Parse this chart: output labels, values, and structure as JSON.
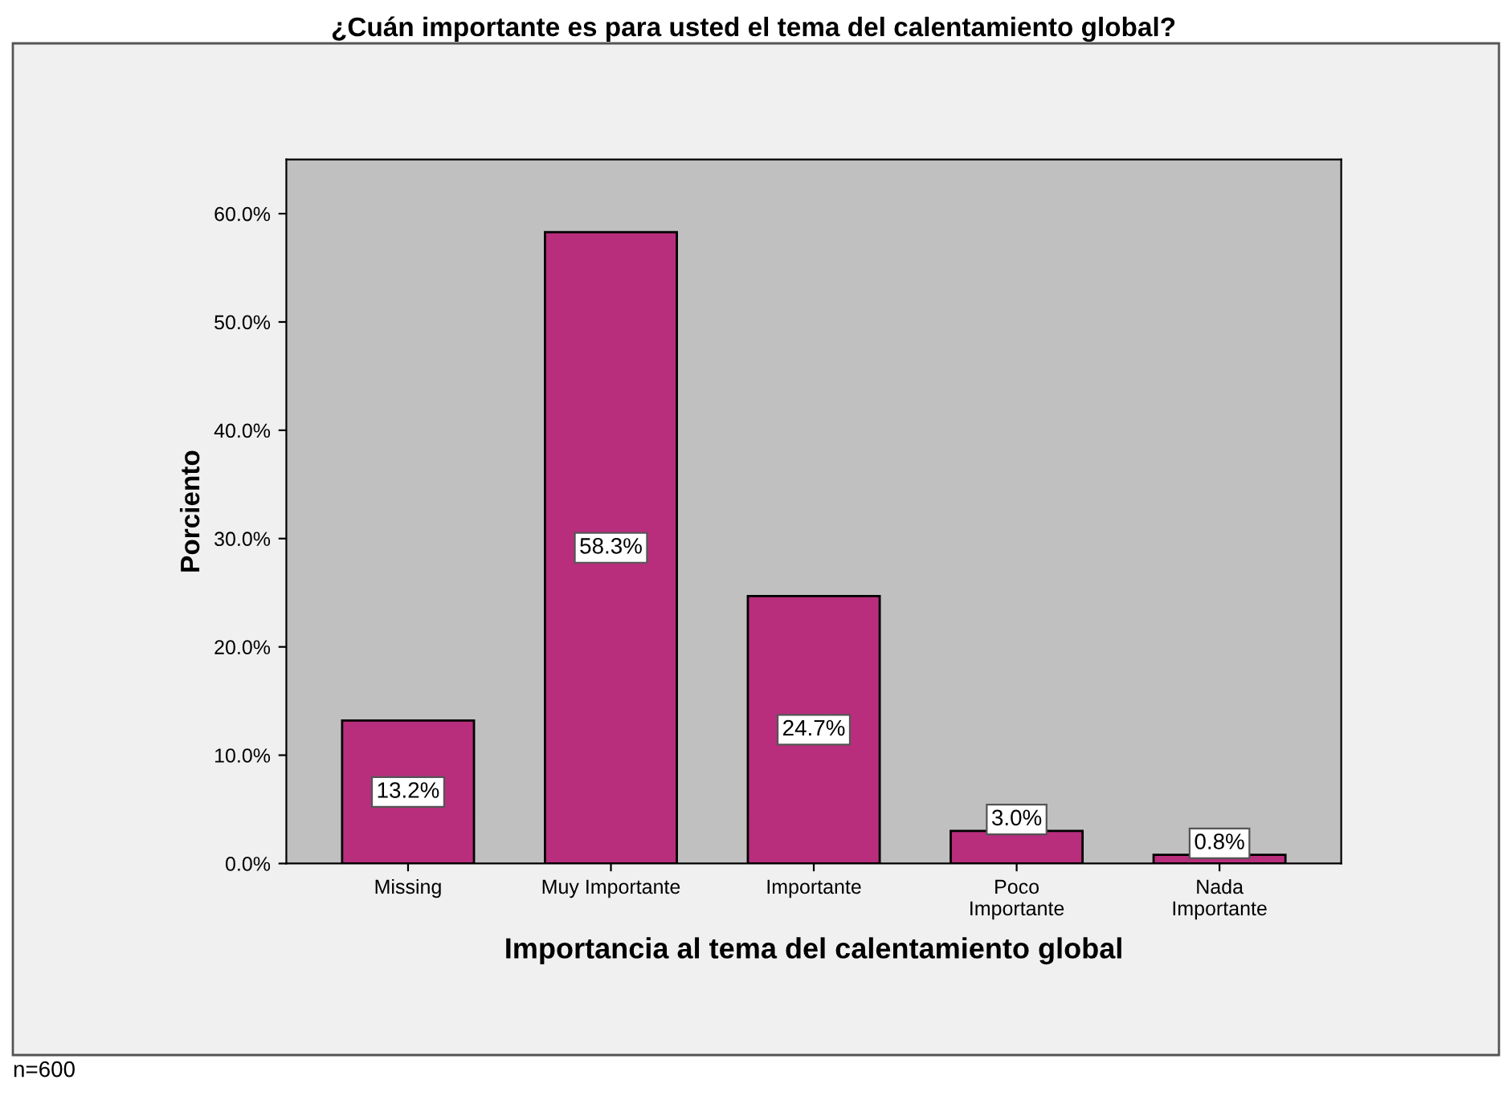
{
  "chart_data": {
    "type": "bar",
    "title": "¿Cuán importante es para usted el tema del calentamiento global?",
    "xlabel": "Importancia al tema del calentamiento global",
    "ylabel": "Porciento",
    "categories": [
      "Missing",
      "Muy Importante",
      "Importante",
      "Poco\nImportante",
      "Nada\nImportante"
    ],
    "values": [
      13.2,
      58.3,
      24.7,
      3.0,
      0.8
    ],
    "value_labels": [
      "13.2%",
      "58.3%",
      "24.7%",
      "3.0%",
      "0.8%"
    ],
    "color": "#b82e7c",
    "ylim": [
      0,
      65
    ],
    "yticks": [
      {
        "value": 0,
        "label": "0.0%"
      },
      {
        "value": 10,
        "label": "10.0%"
      },
      {
        "value": 20,
        "label": "20.0%"
      },
      {
        "value": 30,
        "label": "30.0%"
      },
      {
        "value": 40,
        "label": "40.0%"
      },
      {
        "value": 50,
        "label": "50.0%"
      },
      {
        "value": 60,
        "label": "60.0%"
      }
    ],
    "grid": false,
    "legend": false,
    "annotations": [
      "n=600"
    ]
  }
}
